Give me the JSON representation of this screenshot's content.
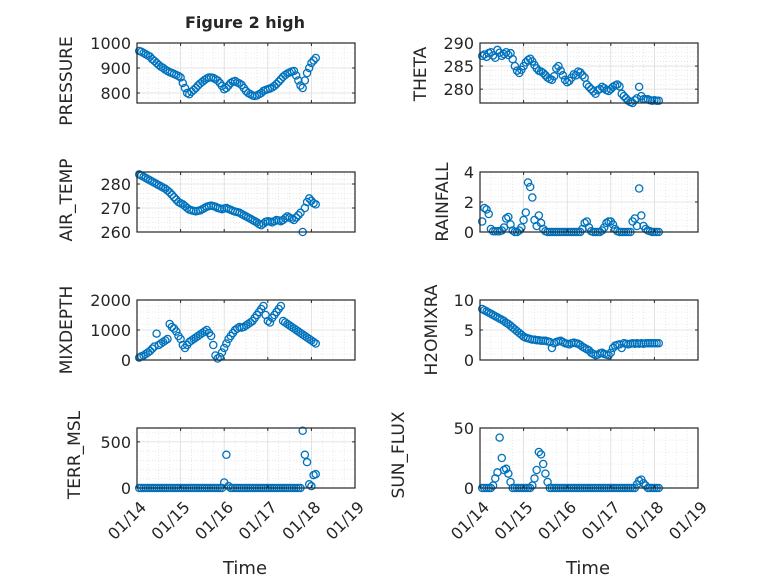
{
  "figure": {
    "title": "Figure 2 high",
    "marker_color": "#0072BD",
    "x_tick_labels": [
      "01/14",
      "01/15",
      "01/16",
      "01/17",
      "01/18",
      "01/19"
    ],
    "x_label": "Time"
  },
  "chart_data": [
    {
      "type": "scatter",
      "ylabel": "PRESSURE",
      "ylim": [
        760,
        1000
      ],
      "yticks": [
        800,
        900,
        1000
      ],
      "grid": true,
      "x": [
        0.05,
        0.1,
        0.15,
        0.2,
        0.25,
        0.3,
        0.35,
        0.4,
        0.45,
        0.5,
        0.55,
        0.6,
        0.65,
        0.7,
        0.75,
        0.8,
        0.85,
        0.9,
        0.95,
        1.0,
        1.05,
        1.1,
        1.15,
        1.2,
        1.25,
        1.3,
        1.35,
        1.4,
        1.45,
        1.5,
        1.55,
        1.6,
        1.65,
        1.7,
        1.75,
        1.8,
        1.85,
        1.9,
        1.95,
        2.0,
        2.05,
        2.1,
        2.15,
        2.2,
        2.25,
        2.3,
        2.35,
        2.4,
        2.45,
        2.5,
        2.55,
        2.6,
        2.65,
        2.7,
        2.75,
        2.8,
        2.85,
        2.9,
        2.95,
        3.0,
        3.05,
        3.1,
        3.15,
        3.2,
        3.25,
        3.3,
        3.35,
        3.4,
        3.45,
        3.5,
        3.55,
        3.6,
        3.65,
        3.7,
        3.75,
        3.8,
        3.85,
        3.9,
        3.95,
        4.0,
        4.05,
        4.1
      ],
      "y": [
        968,
        965,
        960,
        955,
        950,
        945,
        935,
        928,
        920,
        912,
        905,
        900,
        893,
        888,
        883,
        880,
        876,
        872,
        868,
        862,
        840,
        820,
        800,
        795,
        805,
        812,
        820,
        830,
        838,
        845,
        852,
        858,
        862,
        862,
        860,
        855,
        850,
        840,
        828,
        815,
        820,
        830,
        840,
        845,
        848,
        842,
        838,
        832,
        820,
        808,
        800,
        795,
        790,
        788,
        790,
        795,
        800,
        808,
        812,
        815,
        818,
        822,
        828,
        836,
        845,
        855,
        865,
        872,
        878,
        882,
        886,
        888,
        870,
        850,
        830,
        820,
        850,
        880,
        900,
        920,
        930,
        940
      ]
    },
    {
      "type": "scatter",
      "ylabel": "THETA",
      "ylim": [
        277,
        290
      ],
      "yticks": [
        280,
        285,
        290
      ],
      "grid": true,
      "x": [
        0.05,
        0.1,
        0.15,
        0.2,
        0.25,
        0.3,
        0.35,
        0.4,
        0.45,
        0.5,
        0.55,
        0.6,
        0.65,
        0.7,
        0.75,
        0.8,
        0.85,
        0.9,
        0.95,
        1.0,
        1.05,
        1.1,
        1.15,
        1.2,
        1.25,
        1.3,
        1.35,
        1.4,
        1.45,
        1.5,
        1.55,
        1.6,
        1.65,
        1.7,
        1.75,
        1.8,
        1.85,
        1.9,
        1.95,
        2.0,
        2.05,
        2.1,
        2.15,
        2.2,
        2.25,
        2.3,
        2.35,
        2.4,
        2.45,
        2.5,
        2.55,
        2.6,
        2.65,
        2.7,
        2.75,
        2.8,
        2.85,
        2.9,
        2.95,
        3.0,
        3.05,
        3.1,
        3.15,
        3.2,
        3.25,
        3.3,
        3.35,
        3.4,
        3.45,
        3.5,
        3.55,
        3.6,
        3.65,
        3.7,
        3.75,
        3.8,
        3.85,
        3.9,
        3.95,
        4.0,
        4.05,
        4.1
      ],
      "y": [
        287.2,
        287.5,
        287.0,
        287.8,
        288.0,
        287.3,
        286.8,
        288.5,
        287.9,
        287.2,
        287.6,
        288.0,
        287.4,
        287.8,
        286.5,
        285.0,
        284.0,
        283.5,
        284.2,
        285.0,
        285.8,
        286.3,
        286.6,
        286.0,
        285.2,
        284.5,
        284.0,
        283.8,
        283.5,
        283.0,
        282.5,
        282.2,
        282.0,
        282.8,
        284.5,
        285.0,
        284.0,
        283.0,
        282.0,
        281.5,
        281.8,
        282.5,
        283.2,
        283.0,
        283.8,
        283.6,
        283.0,
        282.5,
        281.0,
        280.5,
        280.0,
        279.5,
        279.0,
        279.8,
        280.0,
        280.5,
        280.2,
        279.8,
        279.6,
        280.0,
        280.5,
        280.8,
        281.0,
        280.6,
        279.0,
        278.5,
        278.0,
        277.5,
        277.2,
        277.0,
        277.6,
        278.0,
        280.5,
        278.5,
        277.8,
        277.8,
        277.8,
        277.6,
        277.5,
        277.6,
        277.5,
        277.5
      ]
    },
    {
      "type": "scatter",
      "ylabel": "AIR_TEMP",
      "ylim": [
        260,
        285
      ],
      "yticks": [
        260,
        270,
        280
      ],
      "grid": true,
      "x": [
        0.05,
        0.1,
        0.15,
        0.2,
        0.25,
        0.3,
        0.35,
        0.4,
        0.45,
        0.5,
        0.55,
        0.6,
        0.65,
        0.7,
        0.75,
        0.8,
        0.85,
        0.9,
        0.95,
        1.0,
        1.05,
        1.1,
        1.15,
        1.2,
        1.25,
        1.3,
        1.35,
        1.4,
        1.45,
        1.5,
        1.55,
        1.6,
        1.65,
        1.7,
        1.75,
        1.8,
        1.85,
        1.9,
        1.95,
        2.0,
        2.05,
        2.1,
        2.15,
        2.2,
        2.25,
        2.3,
        2.35,
        2.4,
        2.45,
        2.5,
        2.55,
        2.6,
        2.65,
        2.7,
        2.75,
        2.8,
        2.85,
        2.9,
        2.95,
        3.0,
        3.05,
        3.1,
        3.15,
        3.2,
        3.25,
        3.3,
        3.35,
        3.4,
        3.45,
        3.5,
        3.55,
        3.6,
        3.65,
        3.7,
        3.75,
        3.8,
        3.85,
        3.9,
        3.95,
        4.0,
        4.05,
        4.1
      ],
      "y": [
        284.0,
        283.5,
        283.0,
        282.5,
        282.0,
        281.5,
        281.0,
        280.5,
        280.0,
        279.5,
        279.0,
        278.5,
        278.0,
        277.3,
        276.5,
        275.5,
        274.5,
        273.5,
        272.5,
        272.0,
        271.5,
        270.8,
        270.0,
        269.3,
        269.0,
        268.8,
        268.6,
        268.8,
        269.0,
        269.5,
        270.0,
        270.5,
        270.8,
        271.0,
        270.8,
        270.5,
        270.0,
        269.8,
        269.5,
        269.8,
        270.0,
        269.6,
        269.2,
        268.8,
        268.5,
        268.3,
        268.0,
        267.5,
        267.0,
        266.5,
        266.0,
        265.5,
        265.0,
        264.5,
        264.0,
        263.3,
        262.8,
        263.5,
        264.2,
        264.5,
        264.3,
        264.0,
        264.5,
        265.0,
        264.8,
        264.5,
        265.0,
        265.8,
        266.5,
        266.0,
        265.5,
        265.0,
        266.0,
        267.0,
        268.0,
        260.0,
        270.0,
        272.5,
        274.0,
        273.0,
        272.0,
        271.5
      ]
    },
    {
      "type": "scatter",
      "ylabel": "RAINFALL",
      "ylim": [
        0,
        4
      ],
      "yticks": [
        0,
        2,
        4
      ],
      "grid": true,
      "x": [
        0.05,
        0.1,
        0.15,
        0.2,
        0.25,
        0.3,
        0.35,
        0.4,
        0.45,
        0.5,
        0.55,
        0.6,
        0.65,
        0.7,
        0.75,
        0.8,
        0.85,
        0.9,
        0.95,
        1.0,
        1.05,
        1.1,
        1.15,
        1.2,
        1.25,
        1.3,
        1.35,
        1.4,
        1.45,
        1.5,
        1.55,
        1.6,
        1.65,
        1.7,
        1.75,
        1.8,
        1.85,
        1.9,
        1.95,
        2.0,
        2.05,
        2.1,
        2.15,
        2.2,
        2.25,
        2.3,
        2.35,
        2.4,
        2.45,
        2.5,
        2.55,
        2.6,
        2.65,
        2.7,
        2.75,
        2.8,
        2.85,
        2.9,
        2.95,
        3.0,
        3.05,
        3.1,
        3.15,
        3.2,
        3.25,
        3.3,
        3.35,
        3.4,
        3.45,
        3.5,
        3.55,
        3.6,
        3.65,
        3.7,
        3.75,
        3.8,
        3.85,
        3.9,
        3.95,
        4.0,
        4.05,
        4.1
      ],
      "y": [
        0.7,
        1.6,
        1.5,
        1.2,
        0.2,
        0.05,
        0.05,
        0.05,
        0.05,
        0.1,
        0.3,
        0.9,
        1.0,
        0.5,
        0.1,
        0.0,
        0.0,
        0.1,
        0.3,
        0.8,
        1.3,
        3.3,
        3.0,
        2.3,
        0.8,
        0.4,
        1.1,
        0.6,
        0.2,
        0.05,
        0.0,
        0.0,
        0.0,
        0.0,
        0.0,
        0.0,
        0.0,
        0.0,
        0.0,
        0.0,
        0.0,
        0.0,
        0.0,
        0.0,
        0.0,
        0.0,
        0.2,
        0.6,
        0.7,
        0.3,
        0.05,
        0.0,
        0.0,
        0.0,
        0.0,
        0.1,
        0.3,
        0.6,
        0.7,
        0.7,
        0.5,
        0.2,
        0.05,
        0.0,
        0.0,
        0.0,
        0.0,
        0.0,
        0.0,
        0.7,
        0.9,
        0.4,
        2.9,
        1.1,
        0.4,
        0.2,
        0.1,
        0.05,
        0.0,
        0.0,
        0.0,
        0.0
      ]
    },
    {
      "type": "scatter",
      "ylabel": "MIXDEPTH",
      "ylim": [
        0,
        2000
      ],
      "yticks": [
        0,
        1000,
        2000
      ],
      "grid": true,
      "x": [
        0.05,
        0.1,
        0.15,
        0.2,
        0.25,
        0.3,
        0.35,
        0.4,
        0.45,
        0.5,
        0.55,
        0.6,
        0.65,
        0.7,
        0.75,
        0.8,
        0.85,
        0.9,
        0.95,
        1.0,
        1.05,
        1.1,
        1.15,
        1.2,
        1.25,
        1.3,
        1.35,
        1.4,
        1.45,
        1.5,
        1.55,
        1.6,
        1.65,
        1.7,
        1.75,
        1.8,
        1.85,
        1.9,
        1.95,
        2.0,
        2.05,
        2.1,
        2.15,
        2.2,
        2.25,
        2.3,
        2.35,
        2.4,
        2.45,
        2.5,
        2.55,
        2.6,
        2.65,
        2.7,
        2.75,
        2.8,
        2.85,
        2.9,
        2.95,
        3.0,
        3.05,
        3.1,
        3.15,
        3.2,
        3.25,
        3.3,
        3.35,
        3.4,
        3.45,
        3.5,
        3.55,
        3.6,
        3.65,
        3.7,
        3.75,
        3.8,
        3.85,
        3.9,
        3.95,
        4.0,
        4.05,
        4.1
      ],
      "y": [
        80,
        120,
        150,
        200,
        250,
        300,
        380,
        450,
        880,
        500,
        550,
        600,
        650,
        700,
        1200,
        1100,
        1050,
        950,
        800,
        700,
        500,
        400,
        500,
        600,
        650,
        700,
        750,
        800,
        850,
        900,
        950,
        1000,
        900,
        800,
        500,
        150,
        50,
        100,
        250,
        400,
        550,
        700,
        800,
        900,
        1000,
        1050,
        1100,
        1080,
        1100,
        1150,
        1200,
        1250,
        1300,
        1400,
        1500,
        1600,
        1700,
        1800,
        1500,
        1300,
        1250,
        1400,
        1500,
        1600,
        1700,
        1800,
        1300,
        1250,
        1200,
        1150,
        1100,
        1050,
        1000,
        950,
        900,
        850,
        800,
        750,
        700,
        650,
        600,
        550
      ]
    },
    {
      "type": "scatter",
      "ylabel": "H2OMIXRA",
      "ylim": [
        0,
        10
      ],
      "yticks": [
        0,
        5,
        10
      ],
      "grid": true,
      "x": [
        0.05,
        0.1,
        0.15,
        0.2,
        0.25,
        0.3,
        0.35,
        0.4,
        0.45,
        0.5,
        0.55,
        0.6,
        0.65,
        0.7,
        0.75,
        0.8,
        0.85,
        0.9,
        0.95,
        1.0,
        1.05,
        1.1,
        1.15,
        1.2,
        1.25,
        1.3,
        1.35,
        1.4,
        1.45,
        1.5,
        1.55,
        1.6,
        1.65,
        1.7,
        1.75,
        1.8,
        1.85,
        1.9,
        1.95,
        2.0,
        2.05,
        2.1,
        2.15,
        2.2,
        2.25,
        2.3,
        2.35,
        2.4,
        2.45,
        2.5,
        2.55,
        2.6,
        2.65,
        2.7,
        2.75,
        2.8,
        2.85,
        2.9,
        2.95,
        3.0,
        3.05,
        3.1,
        3.15,
        3.2,
        3.25,
        3.3,
        3.35,
        3.4,
        3.45,
        3.5,
        3.55,
        3.6,
        3.65,
        3.7,
        3.75,
        3.8,
        3.85,
        3.9,
        3.95,
        4.0,
        4.05,
        4.1
      ],
      "y": [
        8.5,
        8.3,
        8.1,
        7.9,
        7.7,
        7.5,
        7.3,
        7.1,
        6.9,
        6.7,
        6.5,
        6.2,
        6.0,
        5.7,
        5.4,
        5.1,
        4.8,
        4.5,
        4.2,
        3.9,
        3.7,
        3.6,
        3.5,
        3.4,
        3.4,
        3.3,
        3.3,
        3.2,
        3.2,
        3.2,
        3.1,
        3.0,
        2.0,
        2.8,
        3.0,
        3.1,
        3.2,
        3.0,
        2.8,
        2.7,
        2.6,
        2.8,
        2.9,
        2.8,
        2.7,
        2.5,
        2.2,
        2.0,
        1.8,
        1.6,
        1.2,
        1.0,
        0.8,
        0.9,
        1.1,
        1.2,
        1.0,
        0.9,
        0.8,
        1.2,
        2.0,
        2.4,
        2.5,
        2.6,
        2.0,
        2.8,
        2.7,
        2.6,
        2.7,
        2.8,
        2.7,
        2.8,
        2.7,
        2.8,
        2.7,
        2.8,
        2.8,
        2.8,
        2.8,
        2.8,
        2.8,
        2.8
      ]
    },
    {
      "type": "scatter",
      "ylabel": "TERR_MSL",
      "ylim": [
        0,
        650
      ],
      "yticks": [
        0,
        500
      ],
      "grid": true,
      "x": [
        0.05,
        0.1,
        0.15,
        0.2,
        0.25,
        0.3,
        0.35,
        0.4,
        0.45,
        0.5,
        0.55,
        0.6,
        0.65,
        0.7,
        0.75,
        0.8,
        0.85,
        0.9,
        0.95,
        1.0,
        1.05,
        1.1,
        1.15,
        1.2,
        1.25,
        1.3,
        1.35,
        1.4,
        1.45,
        1.5,
        1.55,
        1.6,
        1.65,
        1.7,
        1.75,
        1.8,
        1.85,
        1.9,
        1.95,
        2.0,
        2.05,
        2.1,
        2.15,
        2.2,
        2.25,
        2.3,
        2.35,
        2.4,
        2.45,
        2.5,
        2.55,
        2.6,
        2.65,
        2.7,
        2.75,
        2.8,
        2.85,
        2.9,
        2.95,
        3.0,
        3.05,
        3.1,
        3.15,
        3.2,
        3.25,
        3.3,
        3.35,
        3.4,
        3.45,
        3.5,
        3.55,
        3.6,
        3.65,
        3.7,
        3.75,
        3.8,
        3.85,
        3.9,
        3.95,
        4.0,
        4.05,
        4.1
      ],
      "y": [
        0,
        0,
        0,
        0,
        0,
        0,
        0,
        0,
        0,
        0,
        0,
        0,
        0,
        0,
        0,
        0,
        0,
        0,
        0,
        0,
        0,
        0,
        0,
        0,
        0,
        0,
        0,
        0,
        0,
        0,
        0,
        0,
        0,
        0,
        0,
        0,
        0,
        0,
        0,
        60,
        360,
        20,
        0,
        0,
        0,
        0,
        0,
        0,
        0,
        0,
        0,
        0,
        0,
        0,
        0,
        0,
        0,
        0,
        0,
        0,
        0,
        0,
        0,
        0,
        0,
        0,
        0,
        0,
        0,
        0,
        0,
        0,
        0,
        0,
        0,
        620,
        360,
        280,
        40,
        20,
        140,
        150
      ]
    },
    {
      "type": "scatter",
      "ylabel": "SUN_FLUX",
      "ylim": [
        0,
        50
      ],
      "yticks": [
        0,
        50
      ],
      "grid": true,
      "x": [
        0.05,
        0.1,
        0.15,
        0.2,
        0.25,
        0.3,
        0.35,
        0.4,
        0.45,
        0.5,
        0.55,
        0.6,
        0.65,
        0.7,
        0.75,
        0.8,
        0.85,
        0.9,
        0.95,
        1.0,
        1.05,
        1.1,
        1.15,
        1.2,
        1.25,
        1.3,
        1.35,
        1.4,
        1.45,
        1.5,
        1.55,
        1.6,
        1.65,
        1.7,
        1.75,
        1.8,
        1.85,
        1.9,
        1.95,
        2.0,
        2.05,
        2.1,
        2.15,
        2.2,
        2.25,
        2.3,
        2.35,
        2.4,
        2.45,
        2.5,
        2.55,
        2.6,
        2.65,
        2.7,
        2.75,
        2.8,
        2.85,
        2.9,
        2.95,
        3.0,
        3.05,
        3.1,
        3.15,
        3.2,
        3.25,
        3.3,
        3.35,
        3.4,
        3.45,
        3.5,
        3.55,
        3.6,
        3.65,
        3.7,
        3.75,
        3.8,
        3.85,
        3.9,
        3.95,
        4.0,
        4.05,
        4.1
      ],
      "y": [
        0,
        0,
        0,
        0,
        0,
        2,
        8,
        13,
        42,
        25,
        15,
        16,
        12,
        5,
        0,
        0,
        0,
        0,
        0,
        0,
        0,
        0,
        0,
        2,
        8,
        15,
        30,
        28,
        20,
        12,
        5,
        0,
        0,
        0,
        0,
        0,
        0,
        0,
        0,
        0,
        0,
        0,
        0,
        0,
        0,
        0,
        0,
        0,
        0,
        0,
        0,
        0,
        0,
        0,
        0,
        0,
        0,
        0,
        0,
        0,
        0,
        0,
        0,
        0,
        0,
        0,
        0,
        0,
        0,
        0,
        0,
        3,
        6,
        7,
        4,
        2,
        0,
        0,
        0,
        0,
        0,
        0
      ]
    }
  ]
}
